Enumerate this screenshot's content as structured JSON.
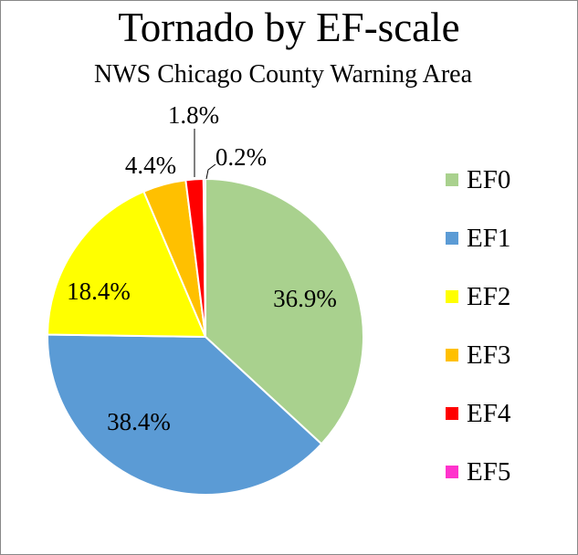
{
  "chart_data": {
    "type": "pie",
    "title": "Tornado by EF-scale",
    "subtitle": "NWS Chicago County Warning Area",
    "categories": [
      "EF0",
      "EF1",
      "EF2",
      "EF3",
      "EF4",
      "EF5"
    ],
    "values": [
      36.9,
      38.4,
      18.4,
      4.4,
      1.8,
      0.2
    ],
    "data_labels": [
      "36.9%",
      "38.4%",
      "18.4%",
      "4.4%",
      "1.8%",
      "0.2%"
    ],
    "colors": [
      "#a9d18e",
      "#5b9bd5",
      "#ffff00",
      "#ffc000",
      "#ff0000",
      "#ff33cc"
    ],
    "legend_position": "right"
  }
}
